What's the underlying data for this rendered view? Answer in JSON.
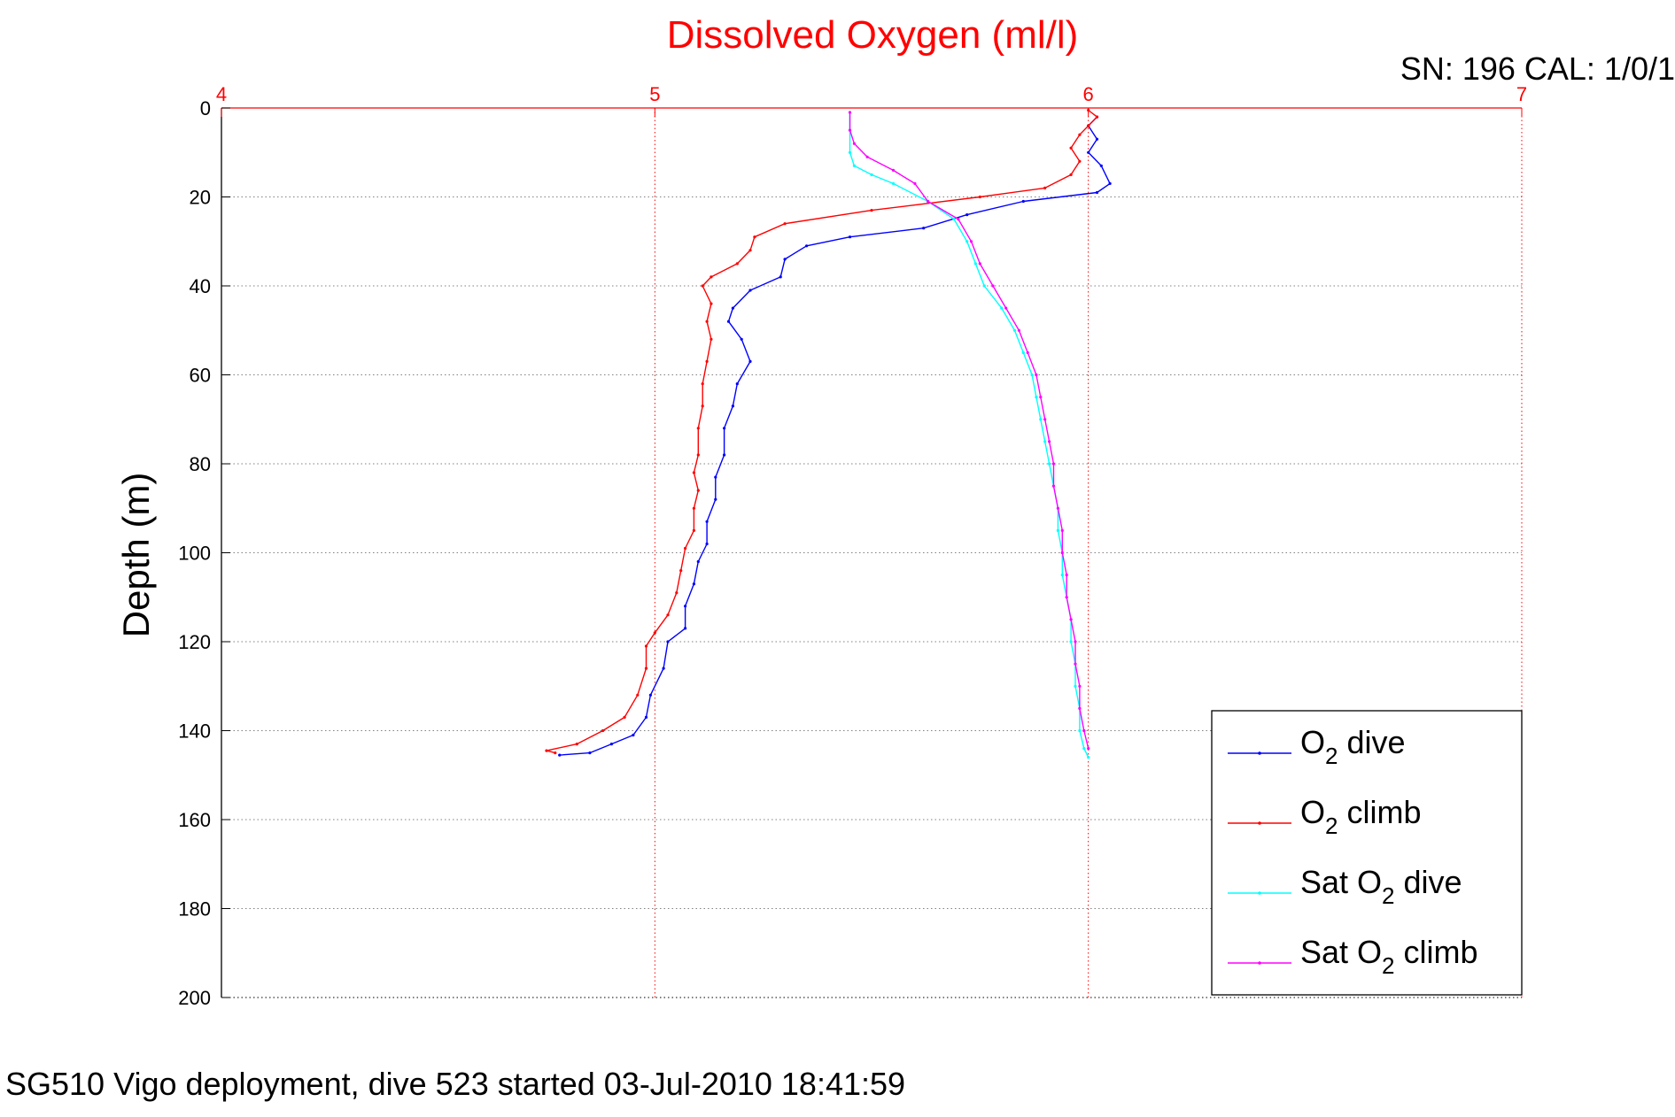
{
  "chart_data": {
    "type": "line",
    "title": "Dissolved Oxygen (ml/l)",
    "subtitle": "SN: 196  CAL: 1/0/1",
    "xlabel": "",
    "ylabel": "Depth (m)",
    "footer": "SG510 Vigo deployment, dive 523 started 03-Jul-2010 18:41:59",
    "xlim": [
      4,
      7
    ],
    "ylim": [
      0,
      200
    ],
    "y_reversed": true,
    "x_axis_position": "top",
    "xticks": [
      4,
      5,
      6,
      7
    ],
    "yticks": [
      0,
      20,
      40,
      60,
      80,
      100,
      120,
      140,
      160,
      180,
      200
    ],
    "grid": true,
    "legend_position": "bottom-right",
    "colors": {
      "title": "#ff0000",
      "x_axis": "#ff0000",
      "y_axis": "#000000",
      "grid": "#808080"
    },
    "series": [
      {
        "name": "O2 dive",
        "legend_main": "O",
        "legend_sub": "2",
        "legend_rest": " dive",
        "color": "#0000ff",
        "points": [
          [
            6.02,
            2
          ],
          [
            6.0,
            4
          ],
          [
            6.02,
            7
          ],
          [
            6.0,
            10
          ],
          [
            6.03,
            13
          ],
          [
            6.05,
            17
          ],
          [
            6.02,
            19
          ],
          [
            5.85,
            21
          ],
          [
            5.72,
            24
          ],
          [
            5.62,
            27
          ],
          [
            5.45,
            29
          ],
          [
            5.35,
            31
          ],
          [
            5.3,
            34
          ],
          [
            5.29,
            38
          ],
          [
            5.22,
            41
          ],
          [
            5.18,
            45
          ],
          [
            5.17,
            48
          ],
          [
            5.2,
            52
          ],
          [
            5.22,
            57
          ],
          [
            5.19,
            62
          ],
          [
            5.18,
            67
          ],
          [
            5.16,
            72
          ],
          [
            5.16,
            78
          ],
          [
            5.14,
            83
          ],
          [
            5.14,
            88
          ],
          [
            5.12,
            93
          ],
          [
            5.12,
            98
          ],
          [
            5.1,
            102
          ],
          [
            5.09,
            107
          ],
          [
            5.07,
            112
          ],
          [
            5.07,
            117
          ],
          [
            5.03,
            120
          ],
          [
            5.02,
            126
          ],
          [
            4.99,
            132
          ],
          [
            4.98,
            137
          ],
          [
            4.95,
            141
          ],
          [
            4.9,
            143
          ],
          [
            4.85,
            145
          ],
          [
            4.78,
            145.5
          ]
        ]
      },
      {
        "name": "O2 climb",
        "legend_main": "O",
        "legend_sub": "2",
        "legend_rest": " climb",
        "color": "#ff0000",
        "points": [
          [
            6.0,
            0.5
          ],
          [
            6.02,
            2
          ],
          [
            6.0,
            4
          ],
          [
            5.98,
            6
          ],
          [
            5.96,
            9
          ],
          [
            5.98,
            12
          ],
          [
            5.96,
            15
          ],
          [
            5.9,
            18
          ],
          [
            5.75,
            20
          ],
          [
            5.5,
            23
          ],
          [
            5.3,
            26
          ],
          [
            5.23,
            29
          ],
          [
            5.22,
            32
          ],
          [
            5.19,
            35
          ],
          [
            5.13,
            38
          ],
          [
            5.11,
            40
          ],
          [
            5.13,
            44
          ],
          [
            5.12,
            48
          ],
          [
            5.13,
            52
          ],
          [
            5.12,
            57
          ],
          [
            5.11,
            62
          ],
          [
            5.11,
            67
          ],
          [
            5.1,
            72
          ],
          [
            5.1,
            78
          ],
          [
            5.09,
            82
          ],
          [
            5.1,
            86
          ],
          [
            5.09,
            90
          ],
          [
            5.09,
            95
          ],
          [
            5.07,
            99
          ],
          [
            5.06,
            104
          ],
          [
            5.05,
            109
          ],
          [
            5.03,
            114
          ],
          [
            5.0,
            118
          ],
          [
            4.98,
            121
          ],
          [
            4.98,
            126
          ],
          [
            4.96,
            132
          ],
          [
            4.93,
            137
          ],
          [
            4.88,
            140
          ],
          [
            4.82,
            143
          ],
          [
            4.75,
            144.5
          ],
          [
            4.77,
            145
          ]
        ]
      },
      {
        "name": "Sat O2 dive",
        "legend_main": "Sat O",
        "legend_sub": "2",
        "legend_rest": " dive",
        "color": "#00ffff",
        "points": [
          [
            5.45,
            1
          ],
          [
            5.45,
            5
          ],
          [
            5.45,
            10
          ],
          [
            5.46,
            13
          ],
          [
            5.5,
            15
          ],
          [
            5.55,
            17
          ],
          [
            5.63,
            21
          ],
          [
            5.69,
            25
          ],
          [
            5.72,
            30
          ],
          [
            5.74,
            35
          ],
          [
            5.76,
            40
          ],
          [
            5.8,
            45
          ],
          [
            5.83,
            50
          ],
          [
            5.85,
            55
          ],
          [
            5.87,
            60
          ],
          [
            5.88,
            65
          ],
          [
            5.89,
            70
          ],
          [
            5.9,
            75
          ],
          [
            5.91,
            80
          ],
          [
            5.92,
            85
          ],
          [
            5.93,
            90
          ],
          [
            5.93,
            95
          ],
          [
            5.94,
            100
          ],
          [
            5.94,
            105
          ],
          [
            5.95,
            110
          ],
          [
            5.96,
            115
          ],
          [
            5.96,
            120
          ],
          [
            5.97,
            125
          ],
          [
            5.97,
            130
          ],
          [
            5.98,
            135
          ],
          [
            5.98,
            140
          ],
          [
            5.99,
            144
          ],
          [
            6.0,
            146
          ]
        ]
      },
      {
        "name": "Sat O2 climb",
        "legend_main": "Sat O",
        "legend_sub": "2",
        "legend_rest": " climb",
        "color": "#ff00ff",
        "points": [
          [
            5.45,
            1
          ],
          [
            5.45,
            5
          ],
          [
            5.46,
            8
          ],
          [
            5.49,
            11
          ],
          [
            5.55,
            14
          ],
          [
            5.6,
            17
          ],
          [
            5.63,
            21
          ],
          [
            5.7,
            25
          ],
          [
            5.73,
            30
          ],
          [
            5.75,
            35
          ],
          [
            5.78,
            40
          ],
          [
            5.81,
            45
          ],
          [
            5.84,
            50
          ],
          [
            5.86,
            55
          ],
          [
            5.88,
            60
          ],
          [
            5.89,
            65
          ],
          [
            5.9,
            70
          ],
          [
            5.91,
            75
          ],
          [
            5.92,
            80
          ],
          [
            5.92,
            85
          ],
          [
            5.93,
            90
          ],
          [
            5.94,
            95
          ],
          [
            5.94,
            100
          ],
          [
            5.95,
            105
          ],
          [
            5.95,
            110
          ],
          [
            5.96,
            115
          ],
          [
            5.97,
            120
          ],
          [
            5.97,
            125
          ],
          [
            5.98,
            130
          ],
          [
            5.98,
            135
          ],
          [
            5.99,
            140
          ],
          [
            6.0,
            144
          ]
        ]
      }
    ]
  }
}
